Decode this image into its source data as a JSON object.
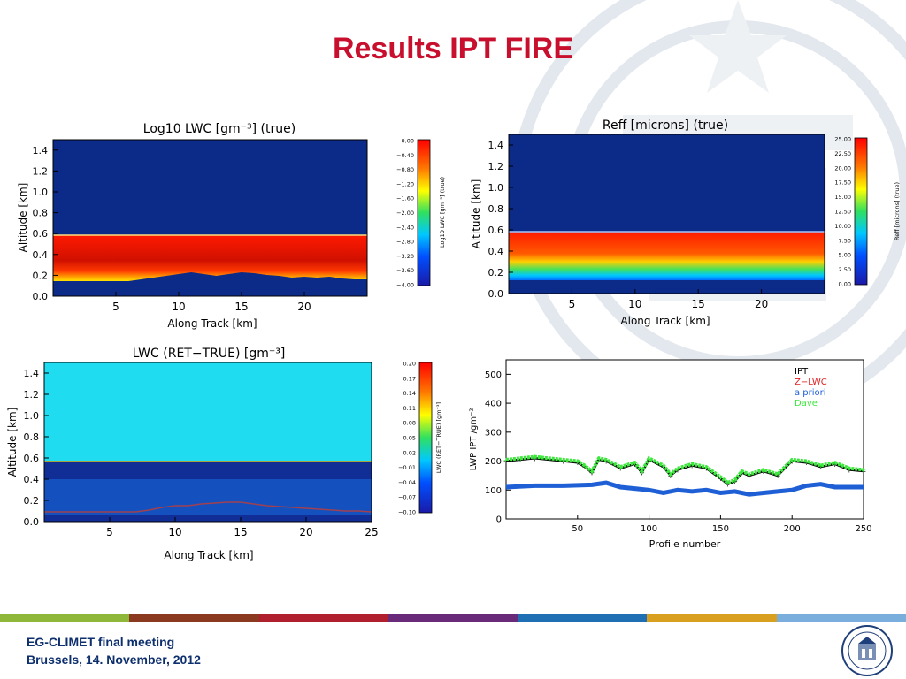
{
  "slide": {
    "title": "Results IPT FIRE",
    "footer_line1": "EG-CLIMET final meeting",
    "footer_line2": "Brussels, 14. November, 2012",
    "footer_colors": [
      "#8fb83a",
      "#8b3a1f",
      "#b01f2e",
      "#6a2a7a",
      "#1f6fb5",
      "#d9a020",
      "#7aaedc"
    ]
  },
  "chart_data": [
    {
      "type": "heatmap",
      "title": "Log10 LWC [gm⁻³] (true)",
      "xlabel": "Along Track [km]",
      "ylabel": "Altitude [km]",
      "x_ticks": [
        "5",
        "10",
        "15",
        "20"
      ],
      "y_ticks": [
        "0.0",
        "0.2",
        "0.4",
        "0.6",
        "0.8",
        "1.0",
        "1.2",
        "1.4"
      ],
      "xlim": [
        0,
        25
      ],
      "ylim": [
        0,
        1.5
      ],
      "cloud_top": 0.6,
      "colorbar_label": "Log10 LWC [gm⁻³] (true)",
      "colorbar_ticks": [
        "0.00",
        "−0.40",
        "−0.80",
        "−1.20",
        "−1.60",
        "−2.00",
        "−2.40",
        "−2.80",
        "−3.20",
        "−3.60",
        "−4.00"
      ]
    },
    {
      "type": "heatmap",
      "title": "Reff [microns] (true)",
      "xlabel": "Along Track [km]",
      "ylabel": "Altitude [km]",
      "x_ticks": [
        "5",
        "10",
        "15",
        "20"
      ],
      "y_ticks": [
        "0.0",
        "0.2",
        "0.4",
        "0.6",
        "0.8",
        "1.0",
        "1.2",
        "1.4"
      ],
      "xlim": [
        0,
        25
      ],
      "ylim": [
        0,
        1.5
      ],
      "cloud_top": 0.6,
      "colorbar_label": "Reff [microns] (true)",
      "colorbar_ticks": [
        "25.00",
        "22.50",
        "20.00",
        "17.50",
        "15.00",
        "12.50",
        "10.00",
        "7.50",
        "5.00",
        "2.50",
        "0.00"
      ]
    },
    {
      "type": "heatmap",
      "title": "LWC (RET−TRUE) [gm⁻³]",
      "xlabel": "Along Track [km]",
      "ylabel": "Altitude [km]",
      "x_ticks": [
        "5",
        "10",
        "15",
        "20",
        "25"
      ],
      "y_ticks": [
        "0.0",
        "0.2",
        "0.4",
        "0.6",
        "0.8",
        "1.0",
        "1.2",
        "1.4"
      ],
      "xlim": [
        0,
        25
      ],
      "ylim": [
        0,
        1.5
      ],
      "cloud_top": 0.6,
      "colorbar_label": "LWC (RET−TRUE) [gm⁻³]",
      "colorbar_ticks": [
        "0.20",
        "0.17",
        "0.14",
        "0.11",
        "0.08",
        "0.05",
        "0.02",
        "−0.01",
        "−0.04",
        "−0.07",
        "−0.10"
      ]
    },
    {
      "type": "line",
      "title": "",
      "xlabel": "Profile number",
      "ylabel": "LWP IPT /gm⁻²",
      "x_ticks": [
        "50",
        "100",
        "150",
        "200",
        "250"
      ],
      "y_ticks": [
        "0",
        "100",
        "200",
        "300",
        "400",
        "500"
      ],
      "xlim": [
        0,
        250
      ],
      "ylim": [
        0,
        550
      ],
      "legend": "top-right",
      "series": [
        {
          "name": "IPT",
          "color": "#000000",
          "x": [
            0,
            10,
            20,
            30,
            40,
            50,
            55,
            60,
            65,
            70,
            80,
            90,
            95,
            100,
            110,
            115,
            120,
            130,
            140,
            150,
            155,
            160,
            165,
            170,
            180,
            190,
            200,
            210,
            220,
            230,
            240,
            250
          ],
          "values": [
            200,
            205,
            210,
            205,
            200,
            195,
            180,
            160,
            205,
            200,
            175,
            190,
            160,
            205,
            180,
            150,
            170,
            185,
            175,
            140,
            120,
            130,
            160,
            150,
            165,
            150,
            200,
            195,
            180,
            190,
            170,
            165
          ]
        },
        {
          "name": "Z−LWC",
          "color": "#e02020",
          "x": [
            0,
            250
          ],
          "values": [
            0,
            0
          ]
        },
        {
          "name": "a priori",
          "color": "#1f5fd6",
          "x": [
            0,
            20,
            40,
            60,
            70,
            80,
            90,
            100,
            110,
            120,
            130,
            140,
            150,
            160,
            170,
            180,
            190,
            200,
            210,
            220,
            230,
            240,
            250
          ],
          "values": [
            110,
            115,
            115,
            118,
            125,
            110,
            105,
            100,
            90,
            100,
            95,
            100,
            90,
            95,
            85,
            90,
            95,
            100,
            115,
            120,
            110,
            110,
            110
          ]
        },
        {
          "name": "Dave",
          "color": "#3ce83c",
          "x": [
            0,
            10,
            20,
            30,
            40,
            50,
            55,
            60,
            65,
            70,
            80,
            90,
            95,
            100,
            110,
            115,
            120,
            130,
            140,
            150,
            155,
            160,
            165,
            170,
            180,
            190,
            200,
            210,
            220,
            230,
            240,
            250
          ],
          "values": [
            205,
            210,
            215,
            210,
            205,
            200,
            185,
            165,
            210,
            205,
            180,
            195,
            165,
            210,
            185,
            155,
            175,
            190,
            180,
            145,
            125,
            135,
            165,
            155,
            170,
            155,
            205,
            200,
            185,
            195,
            175,
            170
          ]
        }
      ]
    }
  ]
}
